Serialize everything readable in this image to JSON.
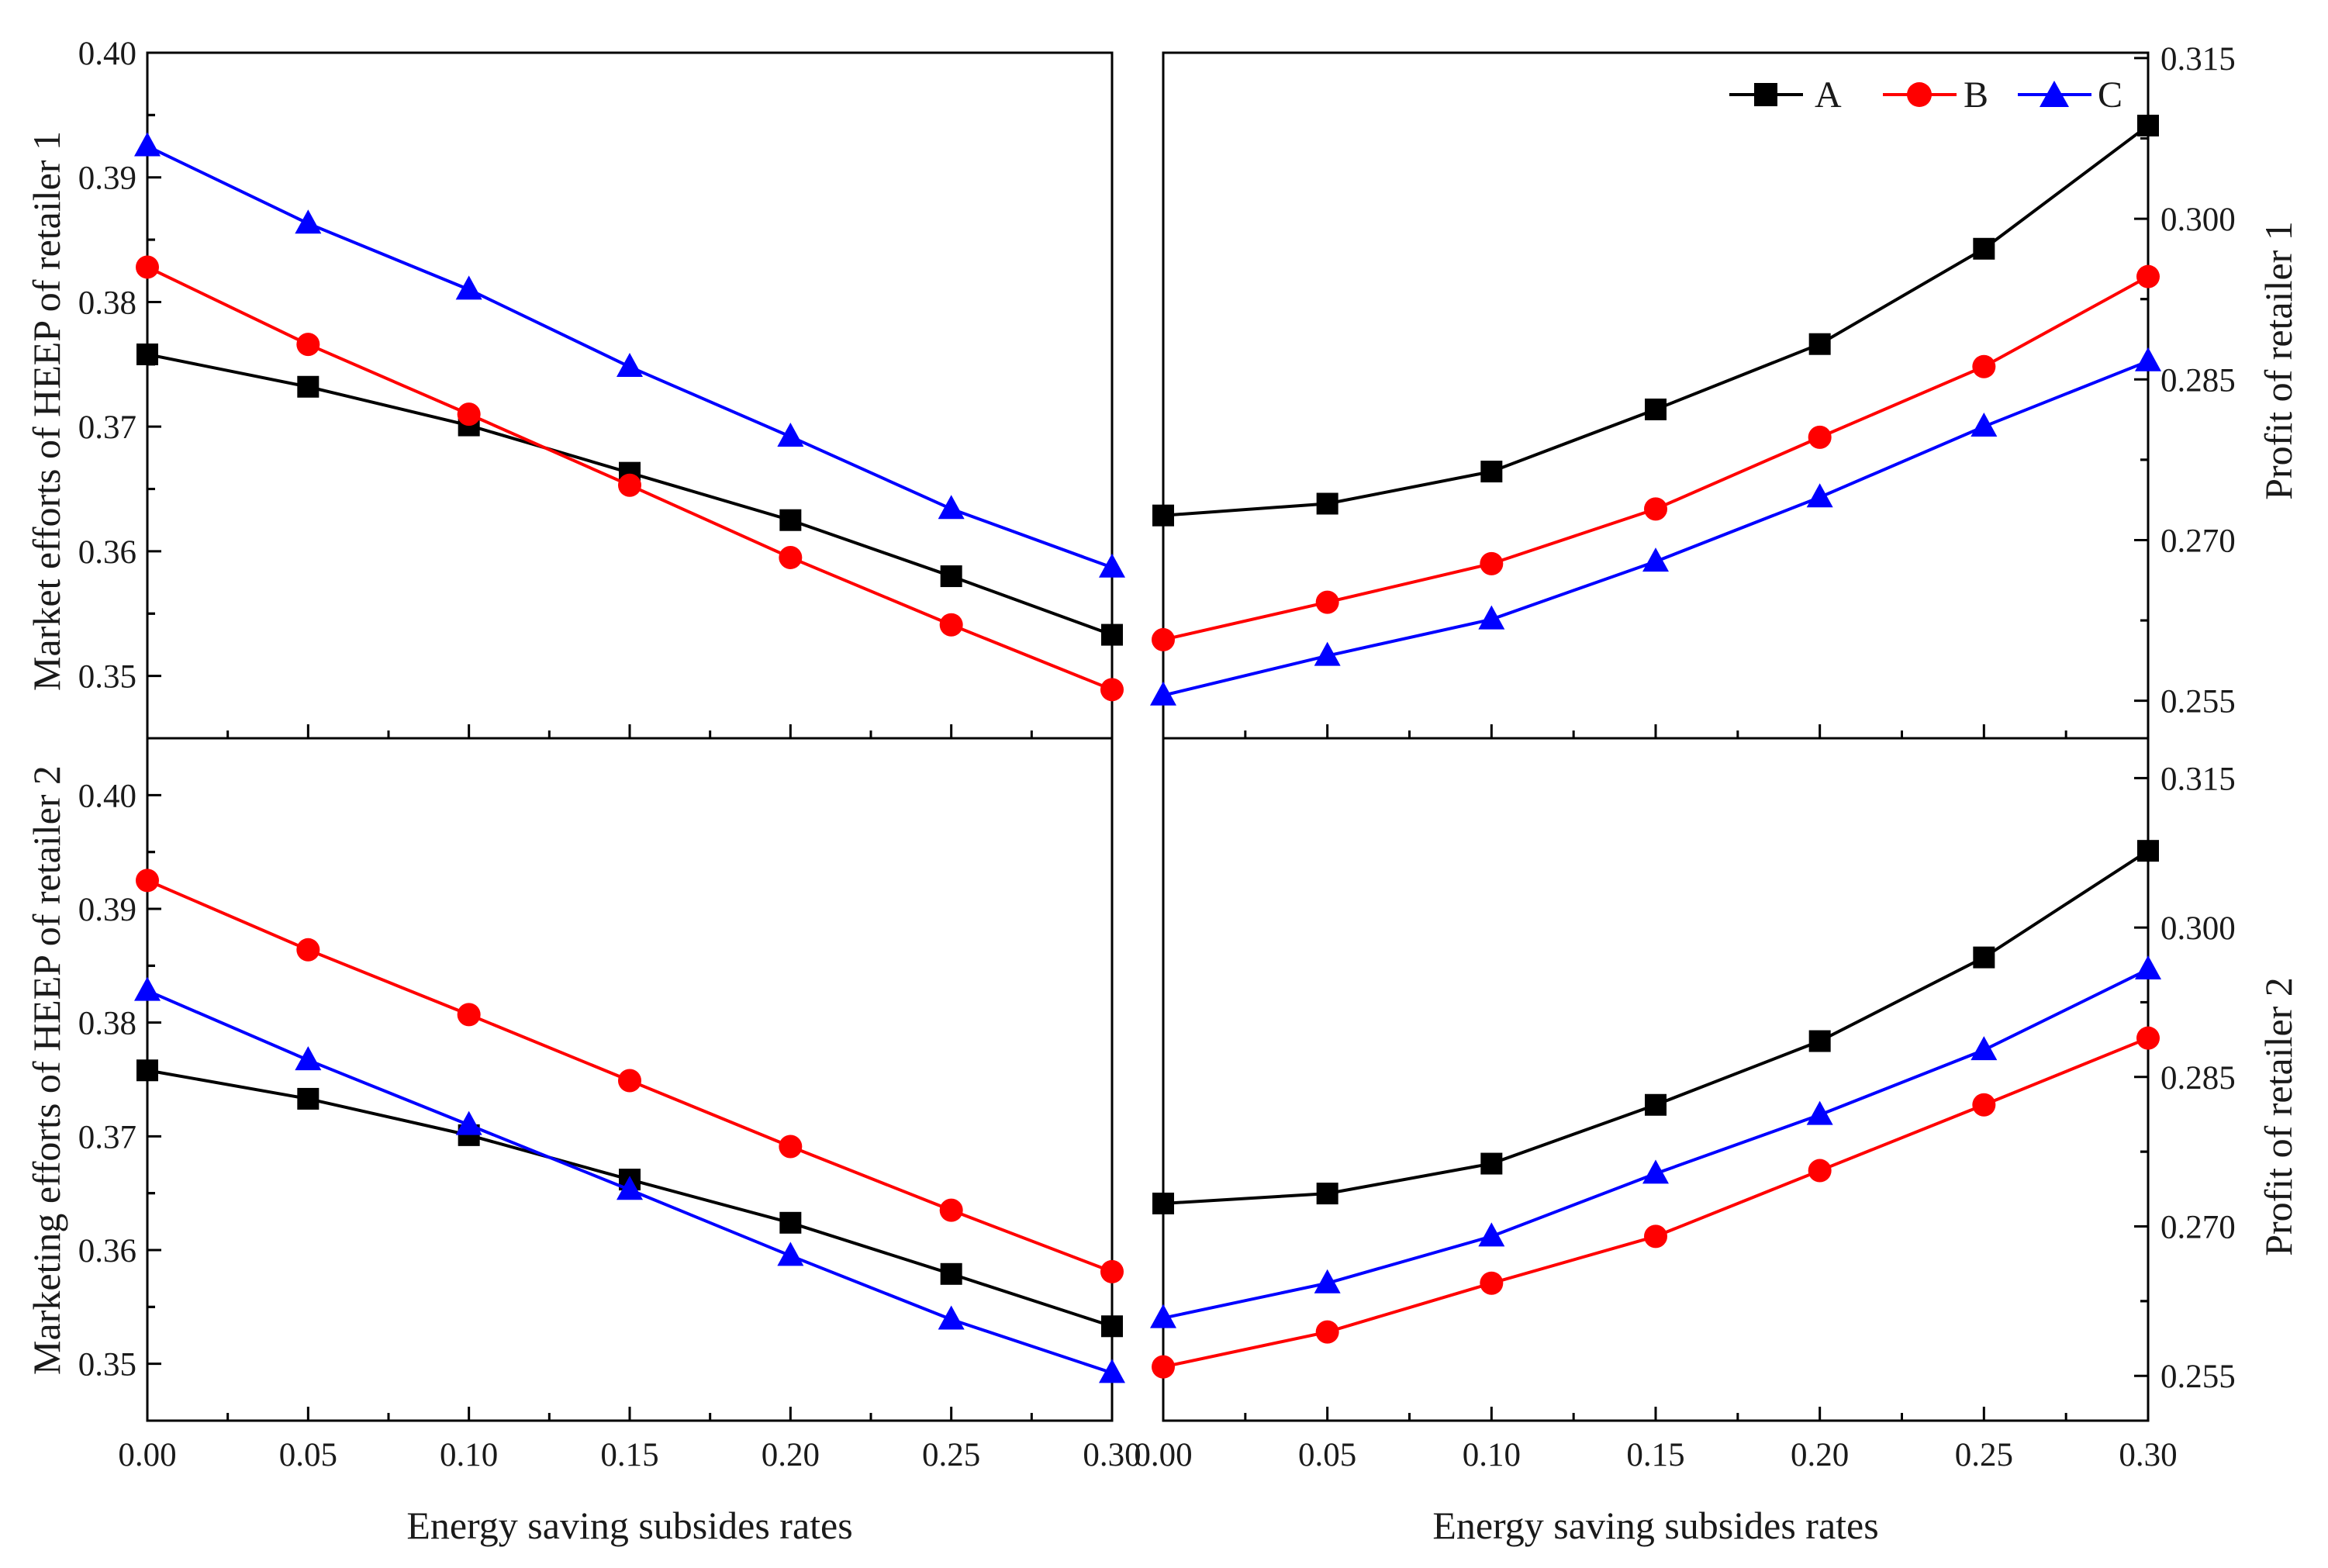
{
  "x_axis_title": "Energy saving subsides rates",
  "colors": {
    "A": "#000000",
    "B": "#ff0000",
    "C": "#0000ff"
  },
  "legend": [
    {
      "key": "A",
      "label": "A",
      "marker": "square"
    },
    {
      "key": "B",
      "label": "B",
      "marker": "circle"
    },
    {
      "key": "C",
      "label": "C",
      "marker": "triangle"
    }
  ],
  "chart_data": [
    {
      "id": "tl",
      "type": "line",
      "ylabel": "Market efforts of HEEP of retailer 1",
      "xlabel": "",
      "x": [
        0,
        0.05,
        0.1,
        0.15,
        0.2,
        0.25,
        0.3
      ],
      "xlim": [
        0,
        0.3
      ],
      "ylim": [
        0.345,
        0.4
      ],
      "yticks": [
        0.35,
        0.36,
        0.37,
        0.38,
        0.39,
        0.4
      ],
      "ytick_labels": [
        "0.35",
        "0.36",
        "0.37",
        "0.38",
        "0.39",
        "0.40"
      ],
      "series": [
        {
          "name": "A",
          "values": [
            0.3758,
            0.3732,
            0.3701,
            0.3663,
            0.3625,
            0.358,
            0.3533
          ]
        },
        {
          "name": "B",
          "values": [
            0.3828,
            0.3766,
            0.371,
            0.3653,
            0.3595,
            0.3541,
            0.3489
          ]
        },
        {
          "name": "C",
          "values": [
            0.3925,
            0.3863,
            0.381,
            0.3748,
            0.3692,
            0.3634,
            0.3587
          ]
        }
      ]
    },
    {
      "id": "tr",
      "type": "line",
      "ylabel": "Profit of retailer 1",
      "xlabel": "",
      "x": [
        0,
        0.05,
        0.1,
        0.15,
        0.2,
        0.25,
        0.3
      ],
      "xlim": [
        0,
        0.3
      ],
      "ylim": [
        0.2515,
        0.3155
      ],
      "yticks": [
        0.255,
        0.27,
        0.285,
        0.3,
        0.315
      ],
      "ytick_labels": [
        "0.255",
        "0.270",
        "0.285",
        "0.300",
        "0.315"
      ],
      "series": [
        {
          "name": "A",
          "values": [
            0.2723,
            0.2734,
            0.2764,
            0.2822,
            0.2883,
            0.2972,
            0.3087
          ]
        },
        {
          "name": "B",
          "values": [
            0.2607,
            0.2642,
            0.2678,
            0.2729,
            0.2796,
            0.2862,
            0.2946
          ]
        },
        {
          "name": "C",
          "values": [
            0.2555,
            0.2592,
            0.2626,
            0.268,
            0.274,
            0.2806,
            0.2867
          ]
        }
      ]
    },
    {
      "id": "bl",
      "type": "line",
      "ylabel": "Marketing efforts of HEEP of retailer 2",
      "xlabel": "Energy saving subsides rates",
      "x": [
        0,
        0.05,
        0.1,
        0.15,
        0.2,
        0.25,
        0.3
      ],
      "x_tick_labels": [
        "0.00",
        "0.05",
        "0.10",
        "0.15",
        "0.20",
        "0.25",
        "0.30"
      ],
      "xlim": [
        0,
        0.3
      ],
      "ylim": [
        0.345,
        0.405
      ],
      "yticks": [
        0.35,
        0.36,
        0.37,
        0.38,
        0.39,
        0.4
      ],
      "ytick_labels": [
        "0.35",
        "0.36",
        "0.37",
        "0.38",
        "0.39",
        "0.40"
      ],
      "series": [
        {
          "name": "A",
          "values": [
            0.3758,
            0.3733,
            0.3701,
            0.3662,
            0.3624,
            0.3579,
            0.3533
          ]
        },
        {
          "name": "B",
          "values": [
            0.3925,
            0.3864,
            0.3807,
            0.3749,
            0.3691,
            0.3635,
            0.3581
          ]
        },
        {
          "name": "C",
          "values": [
            0.3828,
            0.3767,
            0.371,
            0.3653,
            0.3595,
            0.3539,
            0.3492
          ]
        }
      ]
    },
    {
      "id": "br",
      "type": "line",
      "ylabel": "Profit of retailer 2",
      "xlabel": "Energy saving subsides rates",
      "x": [
        0,
        0.05,
        0.1,
        0.15,
        0.2,
        0.25,
        0.3
      ],
      "x_tick_labels": [
        "0.00",
        "0.05",
        "0.10",
        "0.15",
        "0.20",
        "0.25",
        "0.30"
      ],
      "xlim": [
        0,
        0.3
      ],
      "ylim": [
        0.2505,
        0.319
      ],
      "yticks": [
        0.255,
        0.27,
        0.285,
        0.3,
        0.315
      ],
      "ytick_labels": [
        "0.255",
        "0.270",
        "0.285",
        "0.300",
        "0.315"
      ],
      "series": [
        {
          "name": "A",
          "values": [
            0.2723,
            0.2733,
            0.2763,
            0.2822,
            0.2886,
            0.297,
            0.3077
          ]
        },
        {
          "name": "B",
          "values": [
            0.2559,
            0.2594,
            0.2643,
            0.269,
            0.2756,
            0.2822,
            0.2889
          ]
        },
        {
          "name": "C",
          "values": [
            0.2608,
            0.2643,
            0.269,
            0.2753,
            0.2812,
            0.2877,
            0.2958
          ]
        }
      ]
    }
  ]
}
